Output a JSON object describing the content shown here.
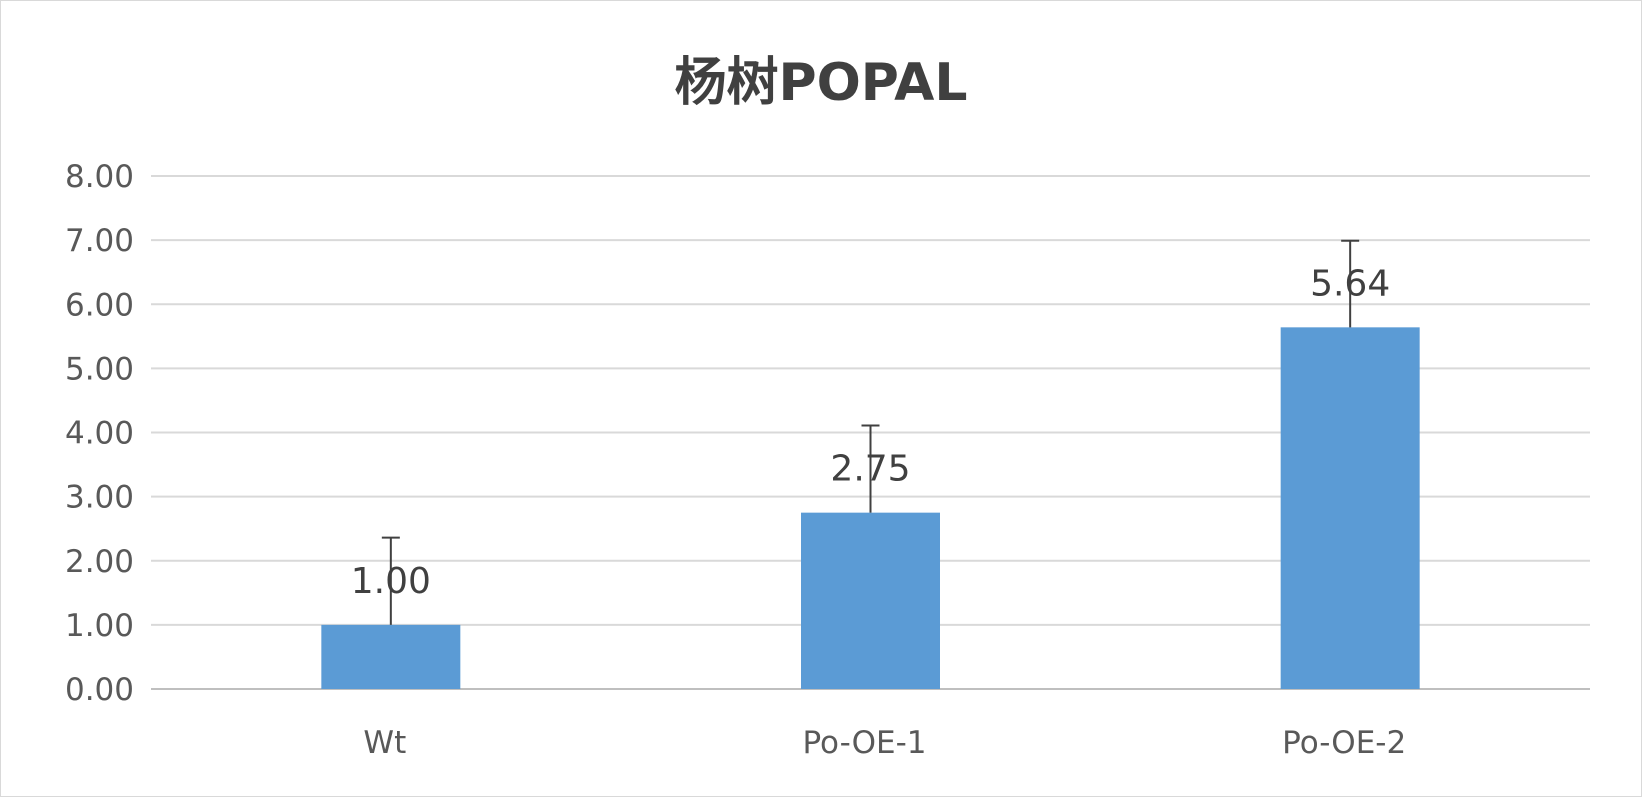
{
  "chart_data": {
    "type": "bar",
    "title": "杨树POPAL",
    "categories": [
      "Wt",
      "Po-OE-1",
      "Po-OE-2"
    ],
    "values": [
      1.0,
      2.75,
      5.64
    ],
    "data_labels": [
      "1.00",
      "2.75",
      "5.64"
    ],
    "error_bars_upper": [
      1.36,
      1.36,
      1.35
    ],
    "ylim": [
      0,
      8
    ],
    "yticks": [
      "0.00",
      "1.00",
      "2.00",
      "3.00",
      "4.00",
      "5.00",
      "6.00",
      "7.00",
      "8.00"
    ],
    "grid": true,
    "legend": "none",
    "bar_color": "#5b9bd5",
    "gridline_color": "#d9d9d9",
    "error_bar_color": "#404040"
  }
}
